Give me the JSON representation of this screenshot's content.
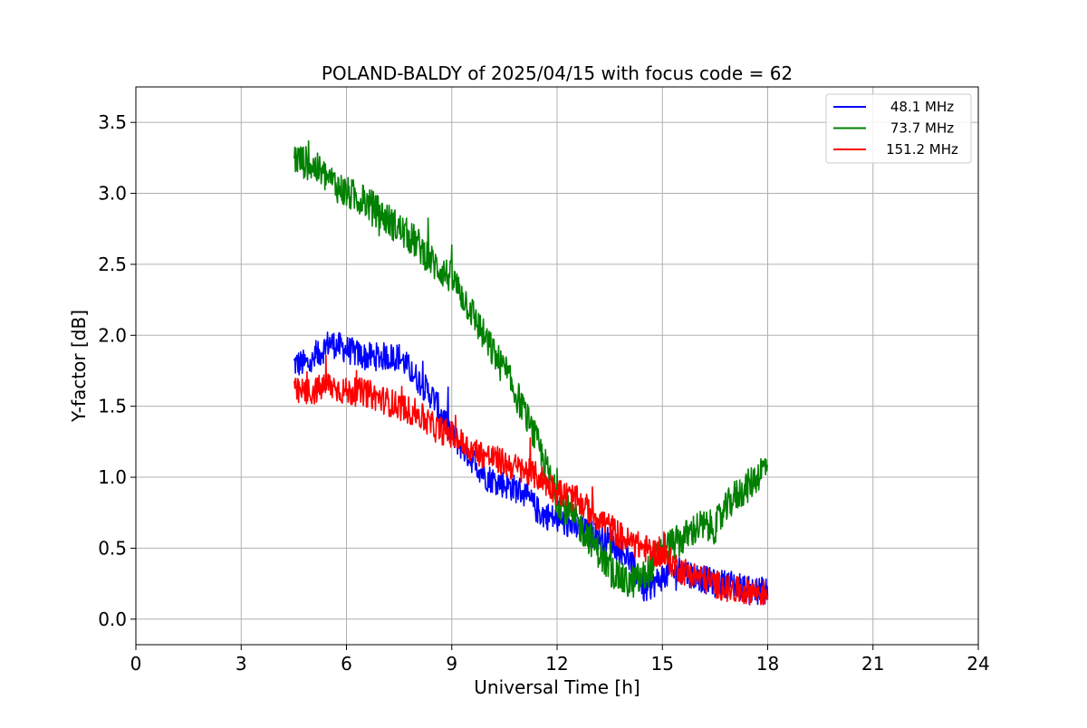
{
  "chart_data": {
    "type": "line",
    "title": "POLAND-BALDY of 2025/04/15 with focus code = 62",
    "xlabel": "Universal Time [h]",
    "ylabel": "Y-factor [dB]",
    "xlim": [
      0,
      24
    ],
    "ylim": [
      -0.18,
      3.75
    ],
    "xticks": [
      0,
      3,
      6,
      9,
      12,
      15,
      18,
      21,
      24
    ],
    "yticks": [
      0.0,
      0.5,
      1.0,
      1.5,
      2.0,
      2.5,
      3.0,
      3.5
    ],
    "grid": true,
    "legend_position": "top-right",
    "series": [
      {
        "name": "48.1 MHz",
        "color": "#0000ff",
        "noise": 0.1,
        "x": [
          4.5,
          5.0,
          5.5,
          6.0,
          6.5,
          7.0,
          7.5,
          8.0,
          8.5,
          9.0,
          9.5,
          10.0,
          10.5,
          11.0,
          11.5,
          12.0,
          12.5,
          13.0,
          13.5,
          14.0,
          14.5,
          15.0,
          15.5,
          16.0,
          16.5,
          17.0,
          17.5,
          18.0
        ],
        "y": [
          1.8,
          1.8,
          1.95,
          1.9,
          1.85,
          1.85,
          1.85,
          1.7,
          1.55,
          1.3,
          1.15,
          1.0,
          0.95,
          0.9,
          0.75,
          0.7,
          0.65,
          0.6,
          0.55,
          0.45,
          0.2,
          0.3,
          0.35,
          0.3,
          0.25,
          0.25,
          0.2,
          0.2
        ]
      },
      {
        "name": "73.7 MHz",
        "color": "#008000",
        "noise": 0.12,
        "x": [
          4.5,
          5.0,
          5.5,
          6.0,
          6.5,
          7.0,
          7.5,
          8.0,
          8.5,
          9.0,
          9.5,
          10.0,
          10.5,
          11.0,
          11.5,
          12.0,
          12.5,
          13.0,
          13.5,
          14.0,
          14.5,
          15.0,
          15.5,
          16.0,
          16.5,
          17.0,
          17.5,
          18.0
        ],
        "y": [
          3.25,
          3.2,
          3.1,
          3.0,
          2.95,
          2.85,
          2.75,
          2.65,
          2.5,
          2.4,
          2.2,
          1.95,
          1.75,
          1.5,
          1.2,
          0.85,
          0.7,
          0.55,
          0.35,
          0.25,
          0.3,
          0.5,
          0.55,
          0.65,
          0.65,
          0.85,
          0.95,
          1.1
        ]
      },
      {
        "name": "151.2 MHz",
        "color": "#ff0000",
        "noise": 0.1,
        "x": [
          4.5,
          5.0,
          5.5,
          6.0,
          6.5,
          7.0,
          7.5,
          8.0,
          8.5,
          9.0,
          9.5,
          10.0,
          10.5,
          11.0,
          11.5,
          12.0,
          12.5,
          13.0,
          13.5,
          14.0,
          14.5,
          15.0,
          15.5,
          16.0,
          16.5,
          17.0,
          17.5,
          18.0
        ],
        "y": [
          1.6,
          1.6,
          1.65,
          1.6,
          1.6,
          1.55,
          1.5,
          1.45,
          1.35,
          1.3,
          1.2,
          1.15,
          1.1,
          1.05,
          1.0,
          0.9,
          0.85,
          0.75,
          0.65,
          0.55,
          0.5,
          0.45,
          0.35,
          0.3,
          0.25,
          0.2,
          0.2,
          0.18
        ]
      }
    ]
  }
}
